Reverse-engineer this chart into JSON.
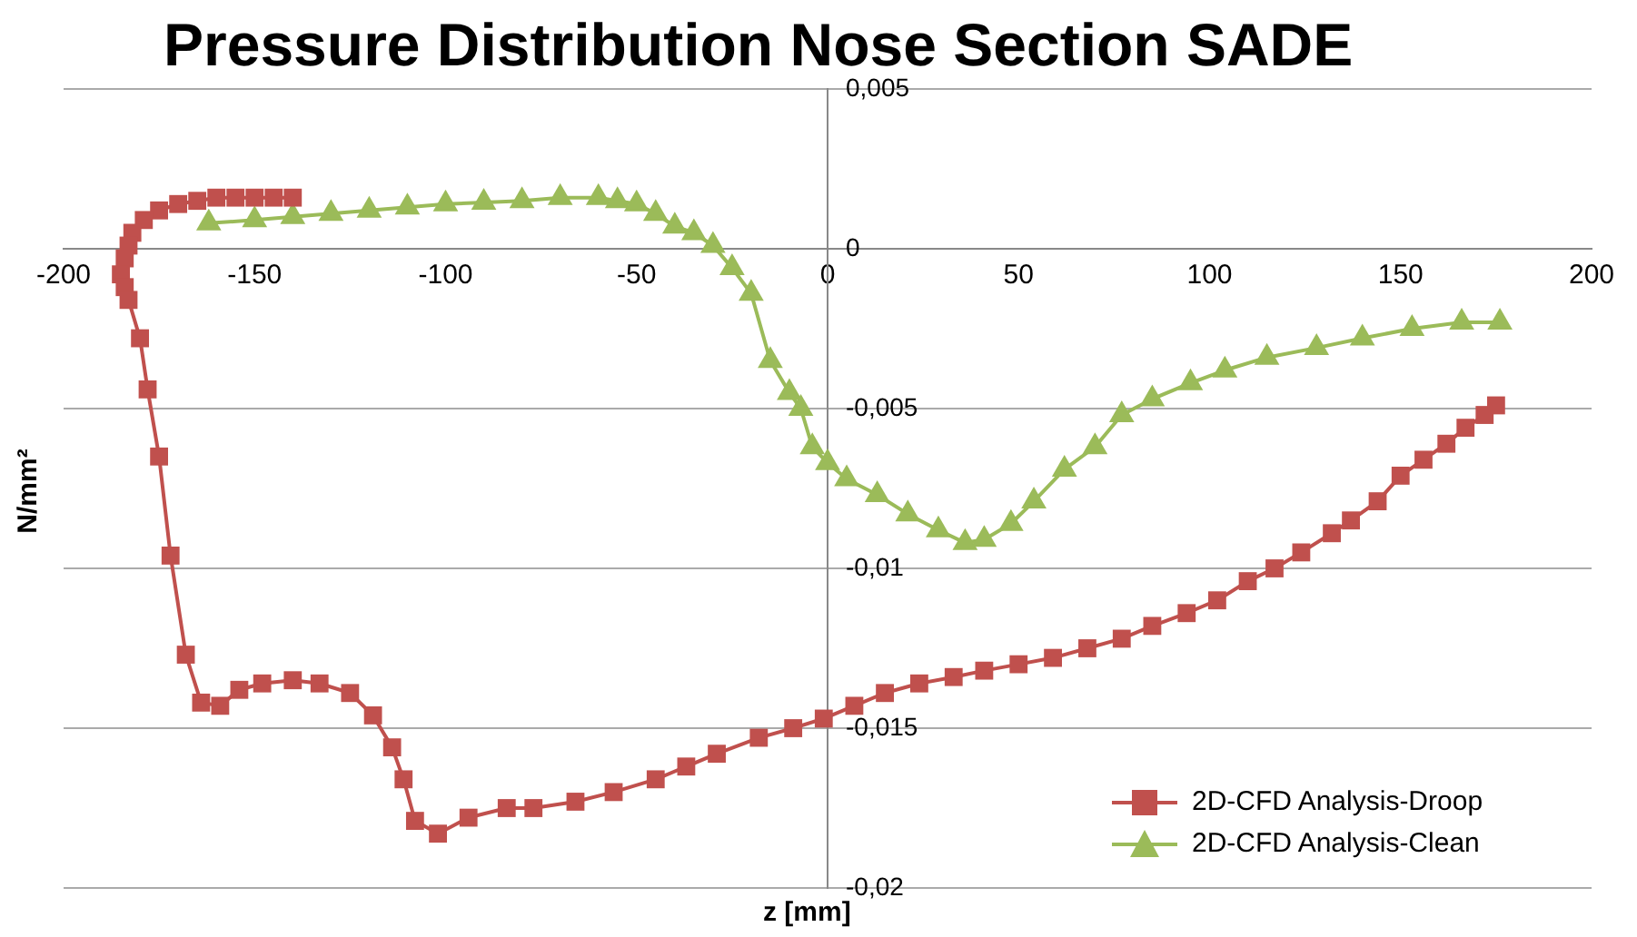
{
  "chart_data": {
    "type": "line",
    "title": "Pressure Distribution Nose Section SADE",
    "xlabel": "z [mm]",
    "ylabel": "N/mm²",
    "xlim": [
      -200,
      200
    ],
    "xticks": [
      -200,
      -150,
      -100,
      -50,
      0,
      50,
      100,
      150,
      200
    ],
    "ylim": [
      -0.02,
      0.005
    ],
    "yticks": [
      {
        "value": -0.02,
        "label": "-0,02"
      },
      {
        "value": -0.015,
        "label": "-0,015"
      },
      {
        "value": -0.01,
        "label": "-0,01"
      },
      {
        "value": -0.005,
        "label": "-0,005"
      },
      {
        "value": 0,
        "label": "0"
      },
      {
        "value": 0.005,
        "label": "0,005"
      }
    ],
    "grid": "y",
    "legend": "bottom right",
    "line_style": "solid",
    "series": [
      {
        "name": "2D-CFD Analysis-Droop",
        "color": "#c0504d",
        "marker": "square",
        "x": [
          -140,
          -145,
          -150,
          -155,
          -160,
          -165,
          -170,
          -175,
          -179,
          -182,
          -183,
          -184,
          -185,
          -184,
          -183,
          -180,
          -178,
          -175,
          -172,
          -168,
          -164,
          -159,
          -154,
          -148,
          -140,
          -133,
          -125,
          -119,
          -114,
          -111,
          -108,
          -102,
          -94,
          -84,
          -77,
          -66,
          -56,
          -45,
          -37,
          -29,
          -18,
          -9,
          -1,
          7,
          15,
          24,
          33,
          41,
          50,
          59,
          68,
          77,
          85,
          94,
          102,
          110,
          117,
          124,
          132,
          137,
          144,
          150,
          156,
          162,
          167,
          172,
          175
        ],
        "values": [
          0.0016,
          0.0016,
          0.0016,
          0.0016,
          0.0016,
          0.0015,
          0.0014,
          0.0012,
          0.0009,
          0.0005,
          0.0001,
          -0.0003,
          -0.0008,
          -0.0012,
          -0.0016,
          -0.0028,
          -0.0044,
          -0.0065,
          -0.0096,
          -0.0127,
          -0.0142,
          -0.0143,
          -0.0138,
          -0.0136,
          -0.0135,
          -0.0136,
          -0.0139,
          -0.0146,
          -0.0156,
          -0.0166,
          -0.0179,
          -0.0183,
          -0.0178,
          -0.0175,
          -0.0175,
          -0.0173,
          -0.017,
          -0.0166,
          -0.0162,
          -0.0158,
          -0.0153,
          -0.015,
          -0.0147,
          -0.0143,
          -0.0139,
          -0.0136,
          -0.0134,
          -0.0132,
          -0.013,
          -0.0128,
          -0.0125,
          -0.0122,
          -0.0118,
          -0.0114,
          -0.011,
          -0.0104,
          -0.01,
          -0.0095,
          -0.0089,
          -0.0085,
          -0.0079,
          -0.0071,
          -0.0066,
          -0.0061,
          -0.0056,
          -0.0052,
          -0.0049
        ]
      },
      {
        "name": "2D-CFD Analysis-Clean",
        "color": "#9bbb59",
        "marker": "triangle",
        "x": [
          -162,
          -150,
          -140,
          -130,
          -120,
          -110,
          -100,
          -90,
          -80,
          -70,
          -60,
          -55,
          -50,
          -45,
          -40,
          -35,
          -30,
          -25,
          -20,
          -15,
          -10,
          -7,
          -4,
          0,
          5,
          13,
          21,
          29,
          36,
          41,
          48,
          54,
          62,
          70,
          77,
          85,
          95,
          104,
          115,
          128,
          140,
          153,
          166,
          176
        ],
        "values": [
          0.0008,
          0.0009,
          0.001,
          0.0011,
          0.0012,
          0.0013,
          0.0014,
          0.00145,
          0.0015,
          0.0016,
          0.0016,
          0.0015,
          0.0014,
          0.0011,
          0.0007,
          0.0005,
          0.0001,
          -0.0006,
          -0.0014,
          -0.0035,
          -0.0045,
          -0.005,
          -0.0062,
          -0.0067,
          -0.0072,
          -0.0077,
          -0.0083,
          -0.0088,
          -0.0092,
          -0.0091,
          -0.0086,
          -0.0079,
          -0.0069,
          -0.0062,
          -0.0052,
          -0.0047,
          -0.0042,
          -0.0038,
          -0.0034,
          -0.0031,
          -0.0028,
          -0.0025,
          -0.0023,
          -0.0023
        ]
      }
    ]
  }
}
